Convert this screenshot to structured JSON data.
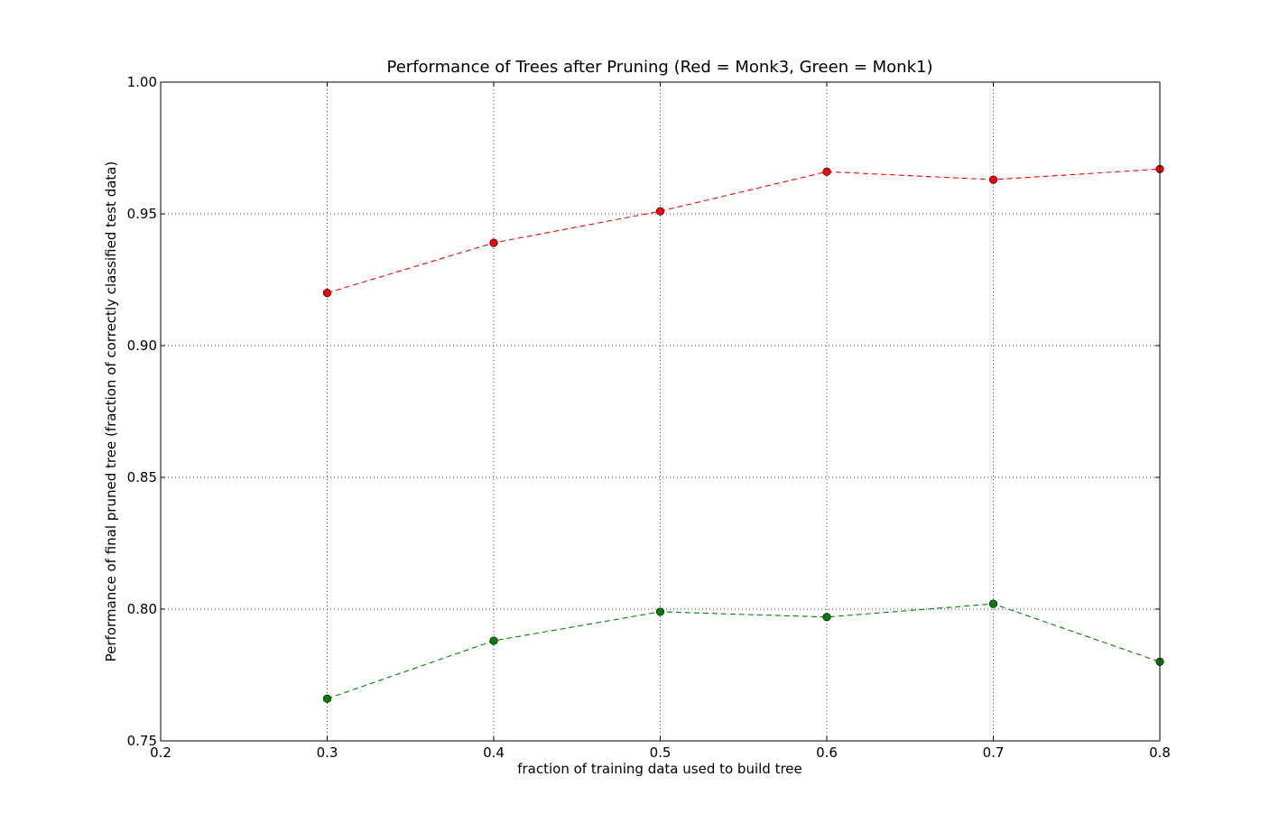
{
  "chart_data": {
    "type": "line",
    "title": "Performance of Trees after Pruning (Red = Monk3, Green = Monk1)",
    "xlabel": "fraction of training data used to build tree",
    "ylabel": "Performance of final pruned tree (fraction of correctly classified test data)",
    "xlim": [
      0.2,
      0.8
    ],
    "ylim": [
      0.75,
      1.0
    ],
    "xticks": [
      "0.2",
      "0.3",
      "0.4",
      "0.5",
      "0.6",
      "0.7",
      "0.8"
    ],
    "yticks": [
      "0.75",
      "0.80",
      "0.85",
      "0.90",
      "0.95",
      "1.00"
    ],
    "grid": true,
    "x": [
      0.3,
      0.4,
      0.5,
      0.6,
      0.7,
      0.8
    ],
    "series": [
      {
        "color": "#ff0000",
        "line_style": "dashed",
        "marker": "circle",
        "values": [
          0.92,
          0.939,
          0.951,
          0.966,
          0.963,
          0.967
        ]
      },
      {
        "color": "#008000",
        "line_style": "dashed",
        "marker": "circle",
        "values": [
          0.766,
          0.788,
          0.799,
          0.797,
          0.802,
          0.78
        ]
      }
    ]
  }
}
